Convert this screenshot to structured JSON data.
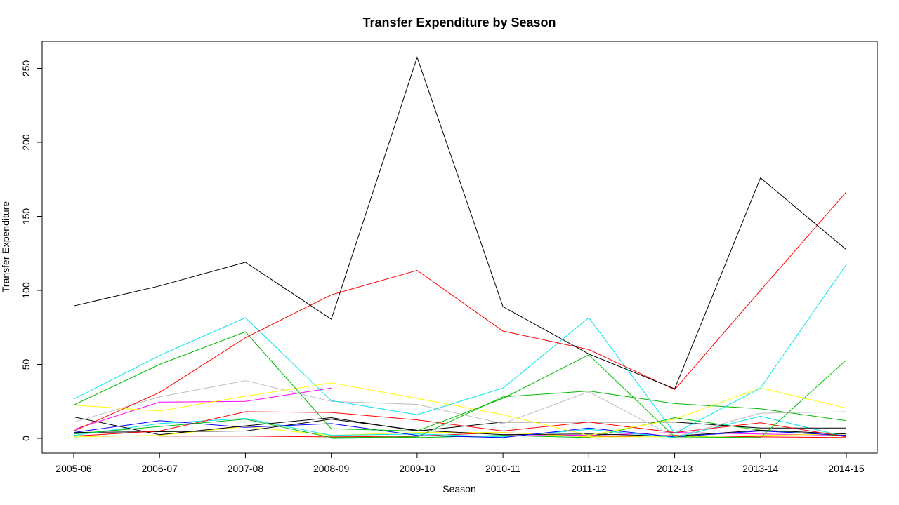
{
  "chart_data": {
    "type": "line",
    "title": "Transfer Expenditure by Season",
    "xlabel": "Season",
    "ylabel": "Transfer Expenditure",
    "categories": [
      "2005-06",
      "2006-07",
      "2007-08",
      "2008-09",
      "2009-10",
      "2010-11",
      "2011-12",
      "2012-13",
      "2013-14",
      "2014-15"
    ],
    "ylim": [
      -10,
      267
    ],
    "yticks": [
      0,
      50,
      100,
      150,
      200,
      250
    ],
    "grid": false,
    "legend": "none",
    "series": [
      {
        "color": "#000000",
        "values": [
          89.5,
          103,
          119,
          80.5,
          257.5,
          89,
          57,
          33.5,
          176,
          127.5
        ]
      },
      {
        "color": "#ff0000",
        "values": [
          5,
          31,
          68,
          97,
          113.5,
          72.5,
          60,
          33,
          100,
          166.5
        ]
      },
      {
        "color": "#00e5ee",
        "values": [
          26.5,
          56,
          81.5,
          25.5,
          16,
          34,
          81.5,
          3.5,
          34,
          117.5
        ]
      },
      {
        "color": "#00bb00",
        "values": [
          22.5,
          50,
          72,
          6.5,
          5,
          27,
          56.5,
          1,
          0.5,
          53
        ]
      },
      {
        "color": "#ffff00",
        "values": [
          22.5,
          18.5,
          28.5,
          37.5,
          27,
          16,
          2,
          13,
          34,
          20.5
        ]
      },
      {
        "color": "#bebebe",
        "values": [
          11,
          28,
          39,
          25,
          23,
          10,
          31.5,
          1,
          17,
          18
        ]
      },
      {
        "color": "#ff00ff",
        "values": [
          6,
          24.5,
          25,
          34,
          null,
          null,
          null,
          null,
          null,
          null
        ]
      },
      {
        "color": "#00bb00",
        "values": [
          3,
          8,
          13,
          0.5,
          1,
          28,
          32,
          23.5,
          20,
          12
        ]
      },
      {
        "color": "#ff0000",
        "values": [
          1.5,
          5,
          18,
          17.5,
          12.5,
          5,
          11,
          4,
          10.5,
          1
        ]
      },
      {
        "color": "#000000",
        "values": [
          14.5,
          2.5,
          8.5,
          14,
          5,
          11,
          11,
          11,
          7,
          7
        ]
      },
      {
        "color": "#0000ff",
        "values": [
          4,
          12,
          7.5,
          10,
          2,
          0.5,
          7,
          1,
          5,
          2
        ]
      },
      {
        "color": "#00e5ee",
        "values": [
          2,
          10,
          13.5,
          2,
          3,
          1,
          6,
          0.5,
          15,
          1
        ]
      },
      {
        "color": "#000000",
        "values": [
          4,
          4.5,
          5,
          13,
          5.5,
          2.5,
          3,
          1.5,
          5.5,
          3
        ]
      },
      {
        "color": "#ffff00",
        "values": [
          1,
          2,
          8,
          2,
          4,
          4,
          1,
          1,
          2,
          3
        ]
      },
      {
        "color": "#ff0000",
        "values": [
          null,
          1.5,
          1.5,
          1,
          1.5,
          4,
          1,
          2,
          1,
          0.5
        ]
      },
      {
        "color": "#00bb00",
        "values": [
          null,
          null,
          null,
          0,
          0.5,
          2,
          0.5,
          14,
          5.5,
          1.5
        ]
      },
      {
        "color": "#ff00ff",
        "values": [
          null,
          null,
          null,
          null,
          null,
          2.5,
          2,
          4,
          3,
          2
        ]
      }
    ]
  }
}
